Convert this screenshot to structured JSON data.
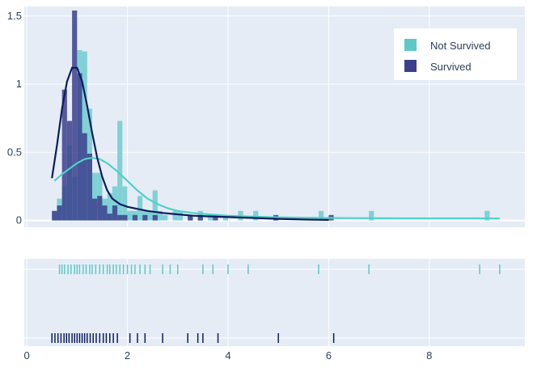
{
  "chart_data": {
    "type": "histogram",
    "title": "",
    "xlabel": "",
    "ylabel": "",
    "xlim": [
      -0.05,
      9.9
    ],
    "ylim": [
      -0.05,
      1.57
    ],
    "x_ticks": [
      0,
      2,
      4,
      6,
      8
    ],
    "y_ticks": [
      0,
      0.5,
      1,
      1.5
    ],
    "x_tick_labels": [
      "0",
      "2",
      "4",
      "6",
      "8"
    ],
    "y_tick_labels": [
      "0",
      "0.5",
      "1",
      "1.5"
    ],
    "bin_width": 0.1,
    "series": [
      {
        "name": "Not Survived",
        "color": "#5ec8c9",
        "histogram": [
          {
            "x": 0.55,
            "y": 0.07
          },
          {
            "x": 0.65,
            "y": 0.16
          },
          {
            "x": 0.75,
            "y": 0.25
          },
          {
            "x": 0.85,
            "y": 0.55
          },
          {
            "x": 0.95,
            "y": 0.32
          },
          {
            "x": 1.05,
            "y": 1.25
          },
          {
            "x": 1.15,
            "y": 1.24
          },
          {
            "x": 1.25,
            "y": 0.82
          },
          {
            "x": 1.35,
            "y": 0.35
          },
          {
            "x": 1.45,
            "y": 0.35
          },
          {
            "x": 1.55,
            "y": 0.16
          },
          {
            "x": 1.65,
            "y": 0.2
          },
          {
            "x": 1.75,
            "y": 0.25
          },
          {
            "x": 1.85,
            "y": 0.73
          },
          {
            "x": 1.95,
            "y": 0.25
          },
          {
            "x": 2.05,
            "y": 0.07
          },
          {
            "x": 2.15,
            "y": 0.07
          },
          {
            "x": 2.25,
            "y": 0.18
          },
          {
            "x": 2.35,
            "y": 0.07
          },
          {
            "x": 2.45,
            "y": 0.07
          },
          {
            "x": 2.55,
            "y": 0.22
          },
          {
            "x": 2.65,
            "y": 0.07
          },
          {
            "x": 2.75,
            "y": 0.04
          },
          {
            "x": 2.95,
            "y": 0.07
          },
          {
            "x": 3.05,
            "y": 0.07
          },
          {
            "x": 3.25,
            "y": 0.04
          },
          {
            "x": 3.45,
            "y": 0.07
          },
          {
            "x": 3.65,
            "y": 0.04
          },
          {
            "x": 3.95,
            "y": 0.04
          },
          {
            "x": 4.25,
            "y": 0.07
          },
          {
            "x": 4.55,
            "y": 0.07
          },
          {
            "x": 5.85,
            "y": 0.07
          },
          {
            "x": 6.85,
            "y": 0.07
          },
          {
            "x": 9.15,
            "y": 0.07
          }
        ],
        "kde": [
          [
            0.55,
            0.29
          ],
          [
            0.7,
            0.34
          ],
          [
            0.85,
            0.38
          ],
          [
            1.0,
            0.42
          ],
          [
            1.15,
            0.45
          ],
          [
            1.3,
            0.46
          ],
          [
            1.45,
            0.45
          ],
          [
            1.6,
            0.42
          ],
          [
            1.8,
            0.36
          ],
          [
            2.0,
            0.29
          ],
          [
            2.2,
            0.22
          ],
          [
            2.4,
            0.16
          ],
          [
            2.6,
            0.12
          ],
          [
            2.8,
            0.09
          ],
          [
            3.0,
            0.07
          ],
          [
            3.3,
            0.055
          ],
          [
            3.6,
            0.045
          ],
          [
            4.0,
            0.035
          ],
          [
            4.5,
            0.028
          ],
          [
            5.0,
            0.023
          ],
          [
            5.5,
            0.02
          ],
          [
            6.0,
            0.018
          ],
          [
            6.5,
            0.017
          ],
          [
            7.0,
            0.016
          ],
          [
            7.5,
            0.015
          ],
          [
            8.0,
            0.015
          ],
          [
            8.5,
            0.015
          ],
          [
            9.0,
            0.015
          ],
          [
            9.4,
            0.014
          ]
        ],
        "rug": [
          0.65,
          0.7,
          0.75,
          0.82,
          0.88,
          0.95,
          1.0,
          1.05,
          1.12,
          1.18,
          1.25,
          1.3,
          1.37,
          1.45,
          1.52,
          1.6,
          1.65,
          1.72,
          1.78,
          1.85,
          1.92,
          2.0,
          2.08,
          2.15,
          2.25,
          2.35,
          2.45,
          2.7,
          2.85,
          3.0,
          3.5,
          3.7,
          4.0,
          4.4,
          5.8,
          6.8,
          9.0,
          9.4
        ]
      },
      {
        "name": "Survived",
        "color": "#3b3f8c",
        "histogram": [
          {
            "x": 0.55,
            "y": 0.07
          },
          {
            "x": 0.65,
            "y": 0.11
          },
          {
            "x": 0.75,
            "y": 0.96
          },
          {
            "x": 0.85,
            "y": 0.73
          },
          {
            "x": 0.95,
            "y": 1.54
          },
          {
            "x": 1.05,
            "y": 1.08
          },
          {
            "x": 1.15,
            "y": 0.64
          },
          {
            "x": 1.25,
            "y": 0.49
          },
          {
            "x": 1.35,
            "y": 0.16
          },
          {
            "x": 1.45,
            "y": 0.18
          },
          {
            "x": 1.55,
            "y": 0.11
          },
          {
            "x": 1.65,
            "y": 0.05
          },
          {
            "x": 1.75,
            "y": 0.11
          },
          {
            "x": 1.85,
            "y": 0.04
          },
          {
            "x": 1.95,
            "y": 0.04
          },
          {
            "x": 2.15,
            "y": 0.04
          },
          {
            "x": 2.35,
            "y": 0.04
          },
          {
            "x": 2.55,
            "y": 0.04
          },
          {
            "x": 3.25,
            "y": 0.04
          },
          {
            "x": 3.45,
            "y": 0.04
          },
          {
            "x": 3.75,
            "y": 0.04
          },
          {
            "x": 4.95,
            "y": 0.04
          },
          {
            "x": 6.05,
            "y": 0.04
          }
        ],
        "kde": [
          [
            0.5,
            0.31
          ],
          [
            0.6,
            0.55
          ],
          [
            0.7,
            0.82
          ],
          [
            0.8,
            1.02
          ],
          [
            0.9,
            1.12
          ],
          [
            1.0,
            1.12
          ],
          [
            1.1,
            1.02
          ],
          [
            1.2,
            0.84
          ],
          [
            1.3,
            0.64
          ],
          [
            1.4,
            0.46
          ],
          [
            1.5,
            0.32
          ],
          [
            1.6,
            0.22
          ],
          [
            1.7,
            0.16
          ],
          [
            1.85,
            0.12
          ],
          [
            2.0,
            0.1
          ],
          [
            2.2,
            0.085
          ],
          [
            2.4,
            0.07
          ],
          [
            2.7,
            0.055
          ],
          [
            3.0,
            0.045
          ],
          [
            3.3,
            0.035
          ],
          [
            3.6,
            0.03
          ],
          [
            4.0,
            0.025
          ],
          [
            4.5,
            0.018
          ],
          [
            5.0,
            0.012
          ],
          [
            5.5,
            0.007
          ],
          [
            6.0,
            0.004
          ]
        ],
        "rug": [
          0.5,
          0.56,
          0.62,
          0.68,
          0.74,
          0.79,
          0.84,
          0.9,
          0.95,
          1.0,
          1.05,
          1.1,
          1.15,
          1.2,
          1.26,
          1.32,
          1.38,
          1.45,
          1.52,
          1.58,
          1.65,
          1.72,
          1.8,
          2.05,
          2.2,
          2.35,
          2.7,
          3.2,
          3.4,
          3.5,
          3.8,
          5.0,
          6.1
        ]
      }
    ],
    "legend": {
      "position": "top-right",
      "items": [
        {
          "label": "Not Survived",
          "color": "#5ec8c9"
        },
        {
          "label": "Survived",
          "color": "#3b3f8c"
        }
      ]
    },
    "grid": true,
    "background": "#e5ecf6"
  }
}
